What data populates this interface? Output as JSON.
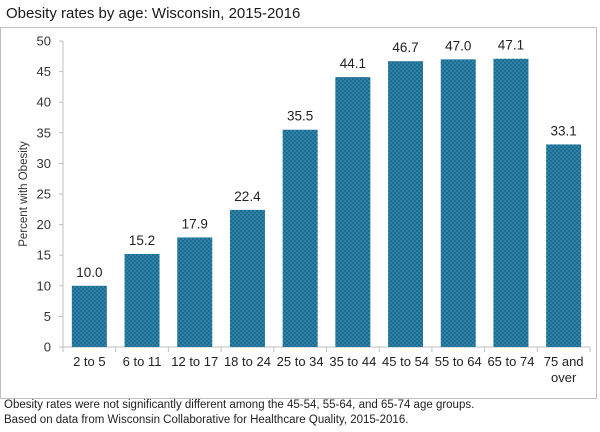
{
  "title": "Obesity rates by age: Wisconsin, 2015-2016",
  "footnotes": [
    "Obesity rates were not significantly different among the 45-54, 55-64, and 65-74 age groups.",
    "Based on data from Wisconsin Collaborative for Healthcare Quality, 2015-2016."
  ],
  "chart_data": {
    "type": "bar",
    "title": "Obesity rates by age: Wisconsin, 2015-2016",
    "xlabel": "",
    "ylabel": "Percent with Obesity",
    "ylim": [
      0,
      50
    ],
    "yticks": [
      "0",
      "5",
      "10",
      "15",
      "20",
      "25",
      "30",
      "35",
      "40",
      "45",
      "50"
    ],
    "grid": false,
    "categories": [
      [
        "2 to 5"
      ],
      [
        "6 to 11"
      ],
      [
        "12 to 17"
      ],
      [
        "18 to 24"
      ],
      [
        "25 to 34"
      ],
      [
        "35 to 44"
      ],
      [
        "45 to 54"
      ],
      [
        "55 to 64"
      ],
      [
        "65 to 74"
      ],
      [
        "75 and",
        "over"
      ]
    ],
    "values": [
      10.0,
      15.2,
      17.9,
      22.4,
      35.5,
      44.1,
      46.7,
      47.0,
      47.1,
      33.1
    ],
    "value_labels": [
      "10.0",
      "15.2",
      "17.9",
      "22.4",
      "35.5",
      "44.1",
      "46.7",
      "47.0",
      "47.1",
      "33.1"
    ],
    "bar_color": "#1a6e95",
    "bar_pattern_color": "#4e98b8"
  }
}
